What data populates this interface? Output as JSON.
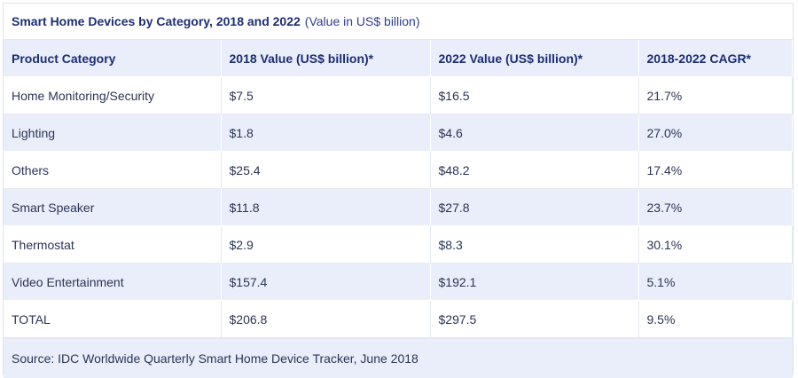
{
  "chart_data": {
    "type": "table",
    "title": "Smart Home Devices by Category, 2018 and 2022",
    "subtitle": "(Value in US$ billion)",
    "columns": [
      "Product Category",
      "2018 Value (US$ billion)*",
      "2022 Value (US$ billion)*",
      "2018-2022 CAGR*"
    ],
    "rows": [
      [
        "Home Monitoring/Security",
        "$7.5",
        "$16.5",
        "21.7%"
      ],
      [
        "Lighting",
        "$1.8",
        "$4.6",
        "27.0%"
      ],
      [
        "Others",
        "$25.4",
        "$48.2",
        "17.4%"
      ],
      [
        "Smart Speaker",
        "$11.8",
        "$27.8",
        "23.7%"
      ],
      [
        "Thermostat",
        "$2.9",
        "$8.3",
        "30.1%"
      ],
      [
        "Video Entertainment",
        "$157.4",
        "$192.1",
        "5.1%"
      ],
      [
        "TOTAL",
        "$206.8",
        "$297.5",
        "9.5%"
      ]
    ],
    "source": "Source: IDC Worldwide Quarterly Smart Home Device Tracker, June 2018"
  },
  "colors": {
    "header_bg": "#e9eefa",
    "title_text": "#1d2d75",
    "body_text": "#2b3456"
  }
}
